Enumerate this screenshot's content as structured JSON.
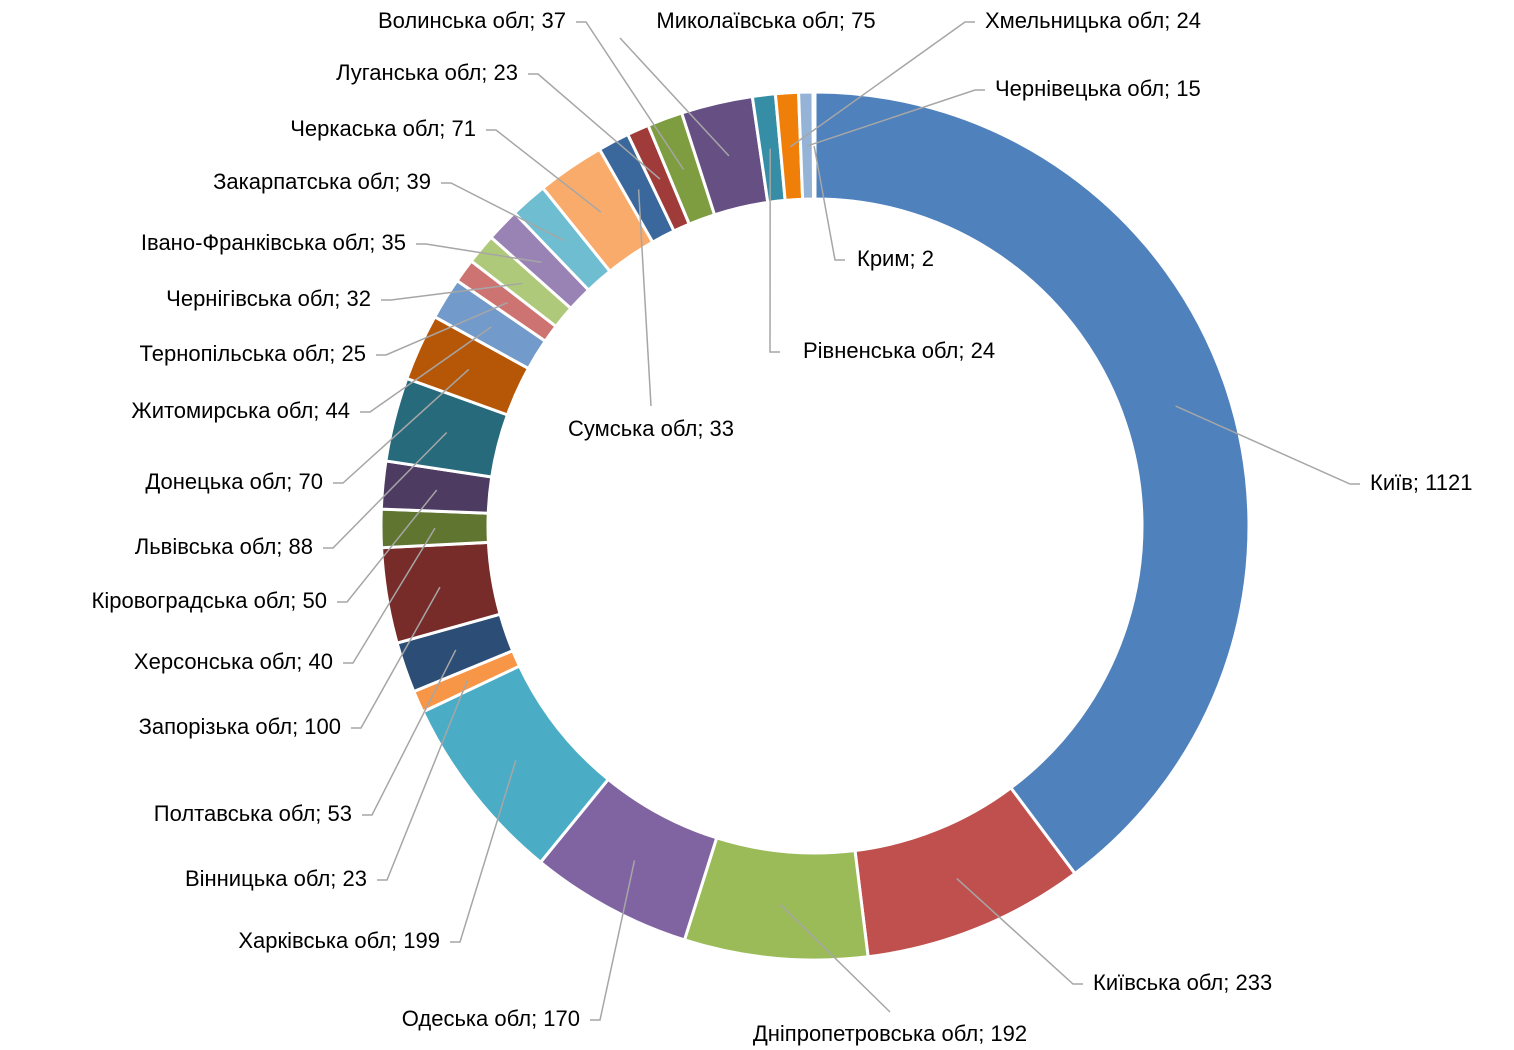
{
  "chart_data": {
    "type": "donut",
    "categories": [
      "Київ",
      "Київська обл",
      "Дніпропетровська обл",
      "Одеська обл",
      "Харківська обл",
      "Вінницька обл",
      "Полтавська обл",
      "Запорізька обл",
      "Херсонська обл",
      "Кіровоградська обл",
      "Львівська обл",
      "Донецька обл",
      "Житомирська обл",
      "Тернопільська обл",
      "Чернігівська обл",
      "Івано-Франківська обл",
      "Закарпатська обл",
      "Черкаська обл",
      "Сумська обл",
      "Луганська обл",
      "Волинська обл",
      "Миколаївська обл",
      "Рівненська обл",
      "Хмельницька обл",
      "Чернівецька обл",
      "Крим"
    ],
    "values": [
      1121,
      233,
      192,
      170,
      199,
      23,
      53,
      100,
      40,
      50,
      88,
      70,
      44,
      25,
      32,
      35,
      39,
      71,
      33,
      23,
      37,
      75,
      24,
      24,
      15,
      2
    ],
    "value_labels": [
      "Київ; 1121",
      "Київська обл; 233",
      "Дніпропетровська обл; 192",
      "Одеська обл; 170",
      "Харківська обл; 199",
      "Вінницька обл; 23",
      "Полтавська обл; 53",
      "Запорізька обл; 100",
      "Херсонська обл; 40",
      "Кіровоградська обл; 50",
      "Львівська обл; 88",
      "Донецька обл; 70",
      "Житомирська обл; 44",
      "Тернопільська обл; 25",
      "Чернігівська обл; 32",
      "Івано-Франківська обл; 35",
      "Закарпатська обл; 39",
      "Черкаська обл; 71",
      "Сумська обл; 33",
      "Луганська обл; 23",
      "Волинська обл; 37",
      "Миколаївська обл; 75",
      "Рівненська обл; 24",
      "Хмельницька обл; 24",
      "Чернівецька обл; 15",
      "Крим; 2"
    ],
    "colors": [
      "#4F81BD",
      "#C0504D",
      "#9BBB59",
      "#8064A2",
      "#4BACC6",
      "#F79646",
      "#2C4D75",
      "#772C2A",
      "#5F7530",
      "#4D3B62",
      "#276A7C",
      "#B65708",
      "#729ACA",
      "#CD7371",
      "#AFC97A",
      "#9983B5",
      "#6FBDD1",
      "#F9AB6B",
      "#3A679C",
      "#9F3B38",
      "#7E9C40",
      "#664F83",
      "#358EA6",
      "#F07F09",
      "#95B3D7",
      "#D99694"
    ]
  }
}
